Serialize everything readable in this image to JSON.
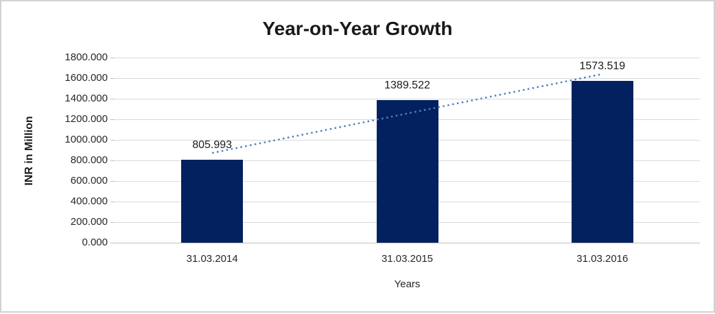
{
  "frame": {
    "border_color": "#d2d2d2",
    "background": "#ffffff"
  },
  "chart_data": {
    "type": "bar",
    "title": "Year-on-Year Growth",
    "categories": [
      "31.03.2014",
      "31.03.2015",
      "31.03.2016"
    ],
    "values": [
      805.993,
      1389.522,
      1573.519
    ],
    "value_labels": [
      "805.993",
      "1389.522",
      "1573.519"
    ],
    "xlabel": "Years",
    "ylabel": "INR in Million",
    "ylim": [
      0,
      1800
    ],
    "ytick_step": 200,
    "ytick_labels": [
      "0.000",
      "200.000",
      "400.000",
      "600.000",
      "800.000",
      "1000.000",
      "1200.000",
      "1400.000",
      "1600.000",
      "1800.000"
    ],
    "grid": true,
    "legend": "none",
    "bar_color": "#02215e",
    "gridline_color": "#d9d9d9",
    "axis_line_color": "#bfbfbf",
    "tick_mark_color": "#bfbfbf",
    "trendline": {
      "type": "linear",
      "style": "dotted",
      "color": "#4f81bd"
    }
  }
}
